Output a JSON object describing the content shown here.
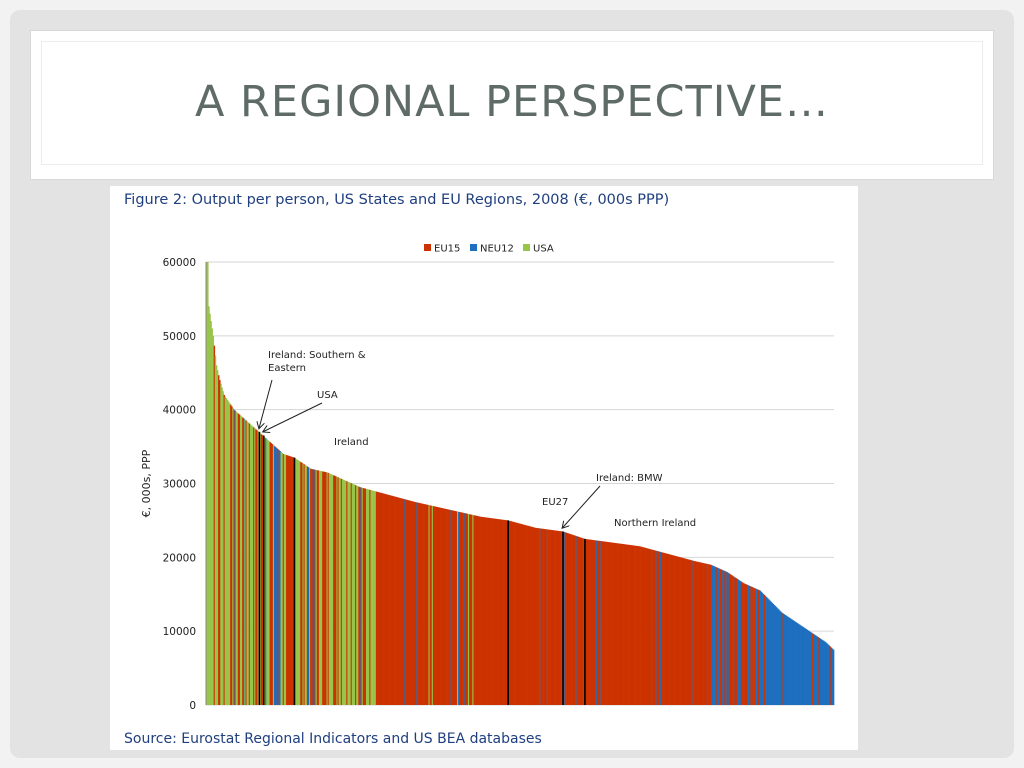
{
  "slide": {
    "title": "A REGIONAL PERSPECTIVE…"
  },
  "figure": {
    "title": "Figure 2: Output per person, US States and EU Regions, 2008 (€, 000s PPP)",
    "source": "Source: Eurostat Regional Indicators and US BEA databases"
  },
  "colors": {
    "EU15": "#cc3300",
    "NEU12": "#1f6fbf",
    "USA": "#99c44a",
    "marker": "#000000",
    "grid": "#d6d6d6"
  },
  "chart_data": {
    "type": "bar",
    "ylabel": "€, 000s, PPP",
    "ylim": [
      0,
      60000
    ],
    "yticks": [
      0,
      10000,
      20000,
      30000,
      40000,
      50000,
      60000
    ],
    "grid": true,
    "legend_position": "top",
    "legend": [
      {
        "name": "EU15",
        "color": "#cc3300"
      },
      {
        "name": "NEU12",
        "color": "#1f6fbf"
      },
      {
        "name": "USA",
        "color": "#99c44a"
      }
    ],
    "annotations": [
      {
        "text": "Ireland: Southern & Eastern",
        "value": 37000
      },
      {
        "text": "USA",
        "value": 36500
      },
      {
        "text": "Ireland",
        "value": 33500
      },
      {
        "text": "EU27",
        "value": 25000
      },
      {
        "text": "Ireland: BMW",
        "value": 23500
      },
      {
        "text": "Northern Ireland",
        "value": 22500
      }
    ],
    "series_profile": {
      "description_points": [
        [
          0,
          60000
        ],
        [
          1,
          60000
        ],
        [
          2,
          54000
        ],
        [
          4,
          52000
        ],
        [
          6,
          50000
        ],
        [
          9,
          46000
        ],
        [
          12,
          44000
        ],
        [
          16,
          42000
        ],
        [
          25,
          40000
        ],
        [
          40,
          38000
        ],
        [
          55,
          36000
        ],
        [
          70,
          34000
        ],
        [
          80,
          33500
        ],
        [
          95,
          32000
        ],
        [
          110,
          31500
        ],
        [
          125,
          30500
        ],
        [
          140,
          29500
        ],
        [
          165,
          28500
        ],
        [
          190,
          27500
        ],
        [
          220,
          26500
        ],
        [
          250,
          25500
        ],
        [
          275,
          25000
        ],
        [
          300,
          24000
        ],
        [
          325,
          23500
        ],
        [
          345,
          22500
        ],
        [
          370,
          22000
        ],
        [
          395,
          21500
        ],
        [
          420,
          20500
        ],
        [
          445,
          19500
        ],
        [
          460,
          19000
        ],
        [
          475,
          18000
        ],
        [
          490,
          16500
        ],
        [
          505,
          15500
        ],
        [
          515,
          14000
        ],
        [
          525,
          12500
        ],
        [
          535,
          11500
        ],
        [
          545,
          10500
        ],
        [
          555,
          9500
        ],
        [
          565,
          8500
        ],
        [
          572,
          7500
        ]
      ]
    }
  }
}
